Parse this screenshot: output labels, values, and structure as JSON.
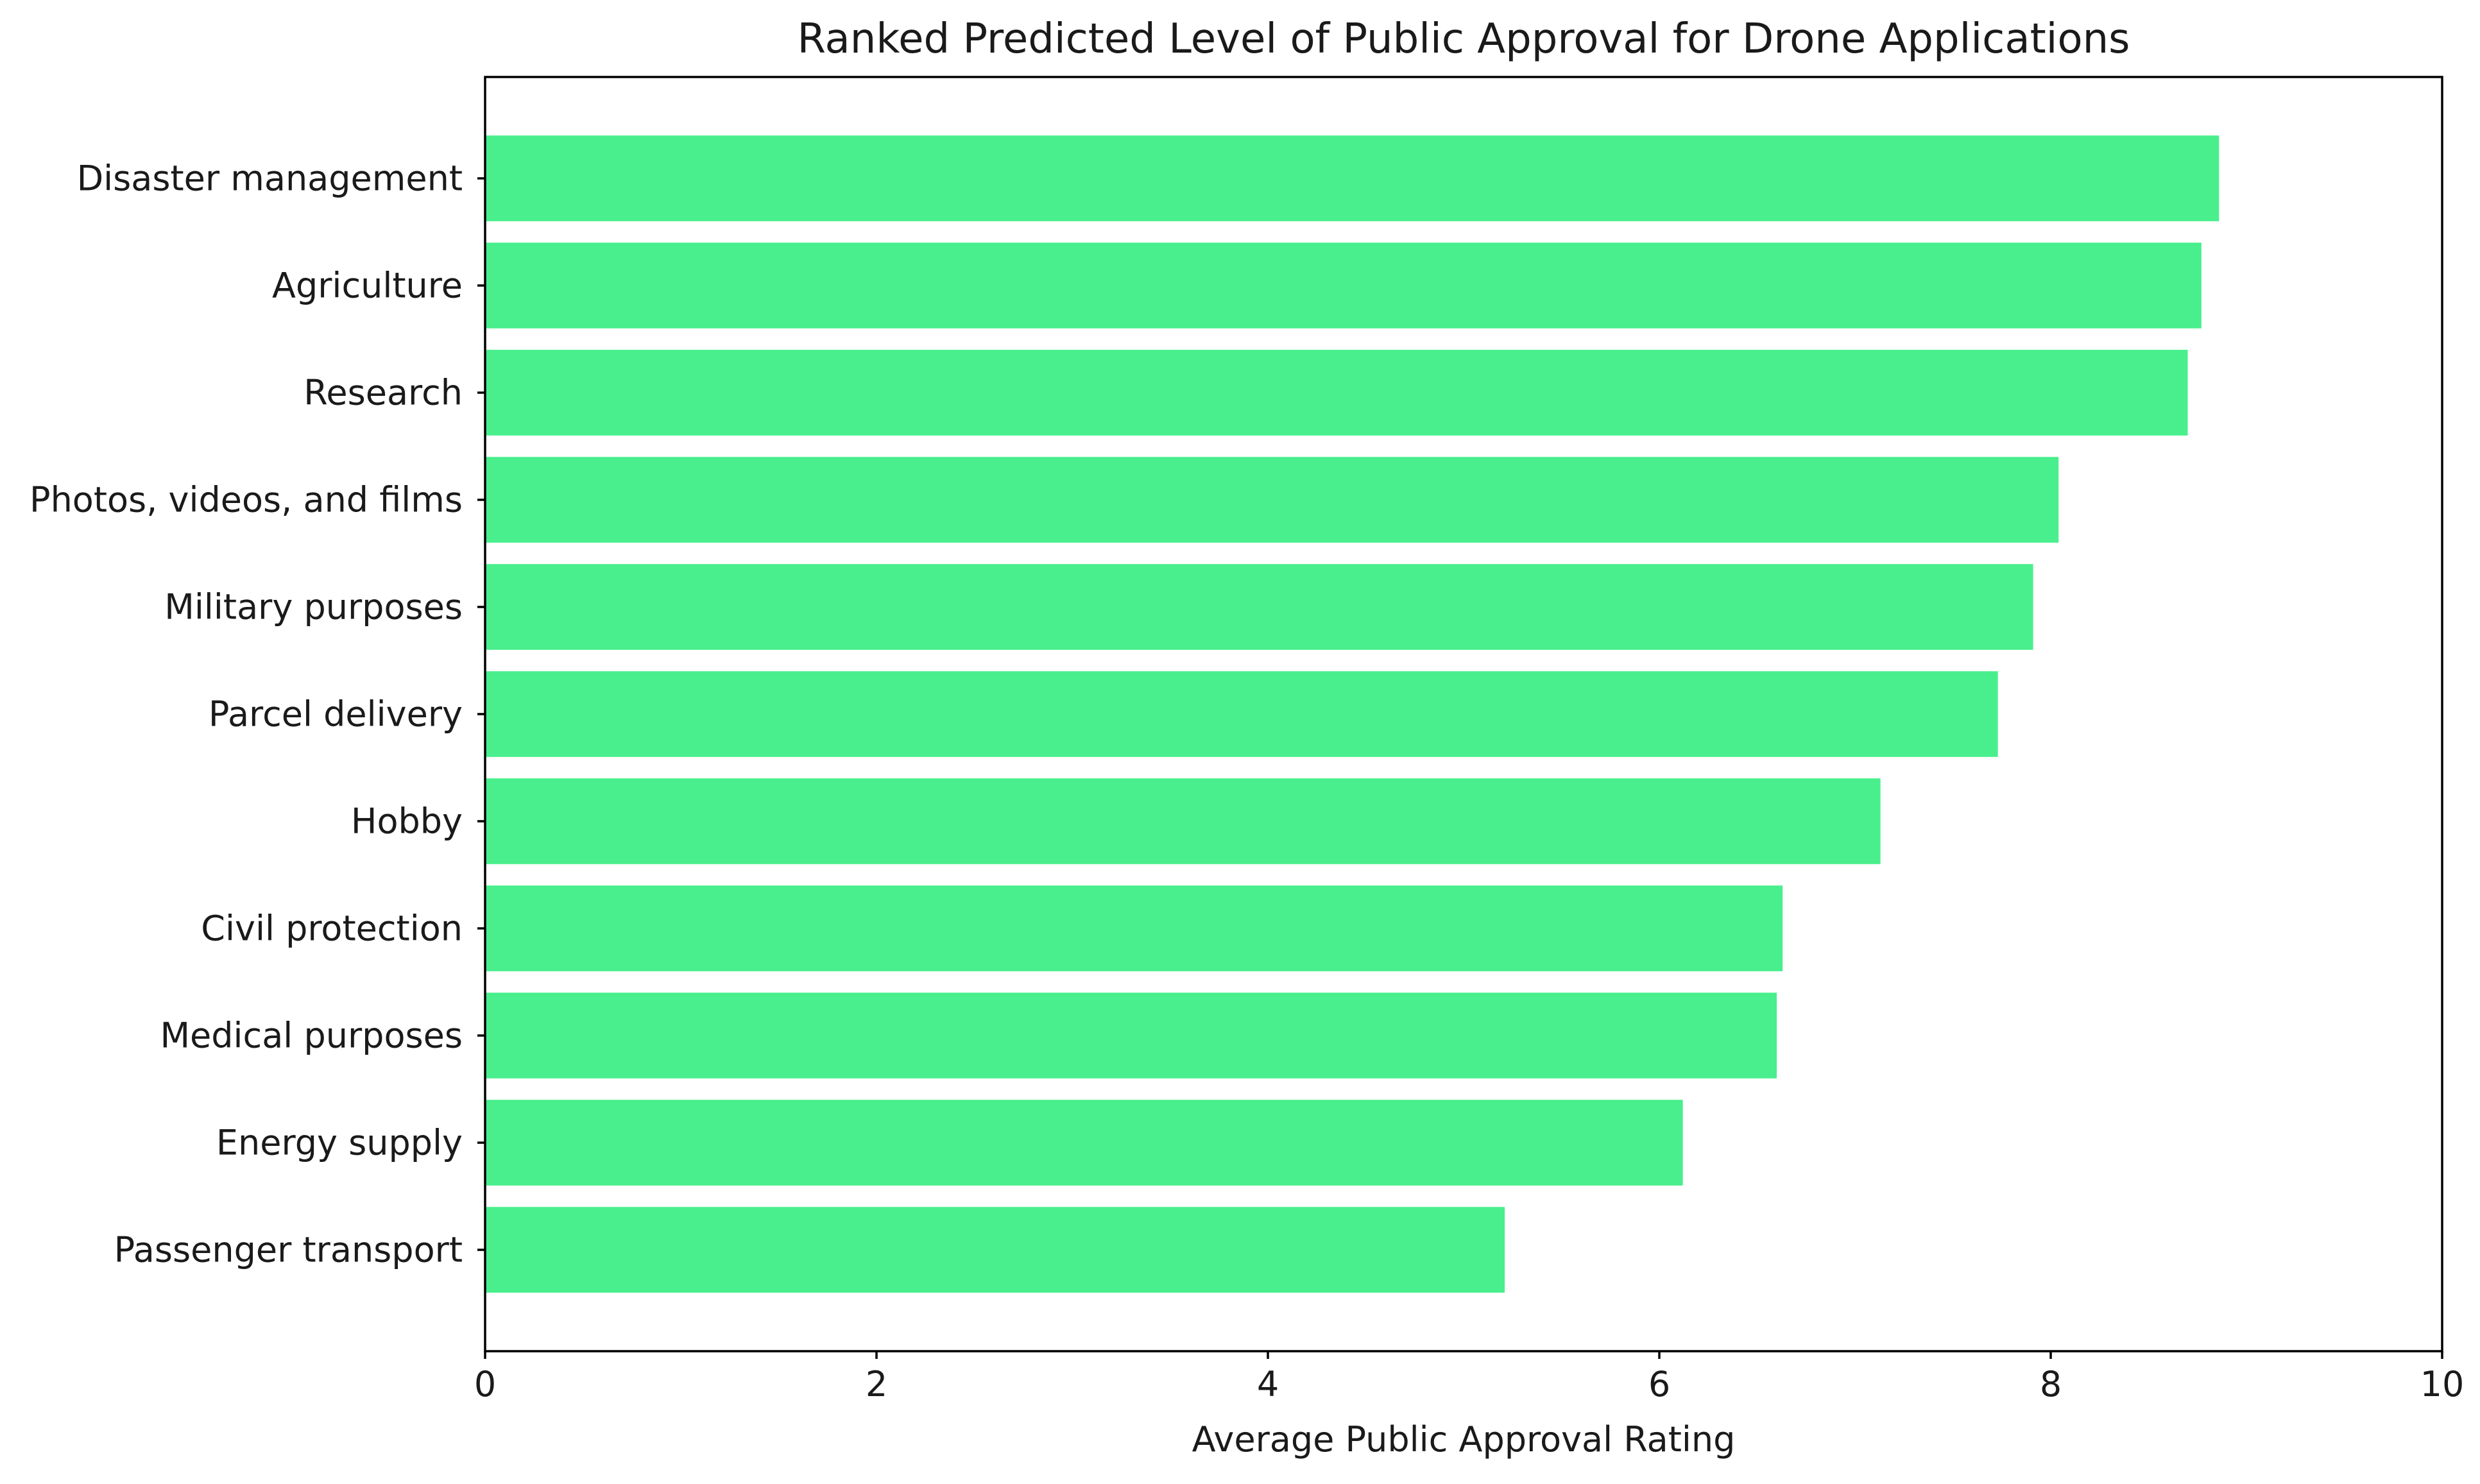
{
  "chart_data": {
    "type": "bar",
    "orientation": "horizontal",
    "title": "Ranked Predicted Level of Public Approval for Drone Applications",
    "xlabel": "Average Public Approval Rating",
    "ylabel": "",
    "categories": [
      "Disaster management",
      "Agriculture",
      "Research",
      "Photos, videos, and films",
      "Military purposes",
      "Parcel delivery",
      "Hobby",
      "Civil protection",
      "Medical purposes",
      "Energy supply",
      "Passenger transport"
    ],
    "values": [
      8.86,
      8.77,
      8.7,
      8.04,
      7.91,
      7.73,
      7.13,
      6.63,
      6.6,
      6.12,
      5.21
    ],
    "xlim": [
      0,
      10
    ],
    "xticks": [
      "0",
      "2",
      "4",
      "6",
      "8",
      "10"
    ],
    "bar_color": "#48ef8c",
    "grid": false,
    "legend": "none"
  }
}
